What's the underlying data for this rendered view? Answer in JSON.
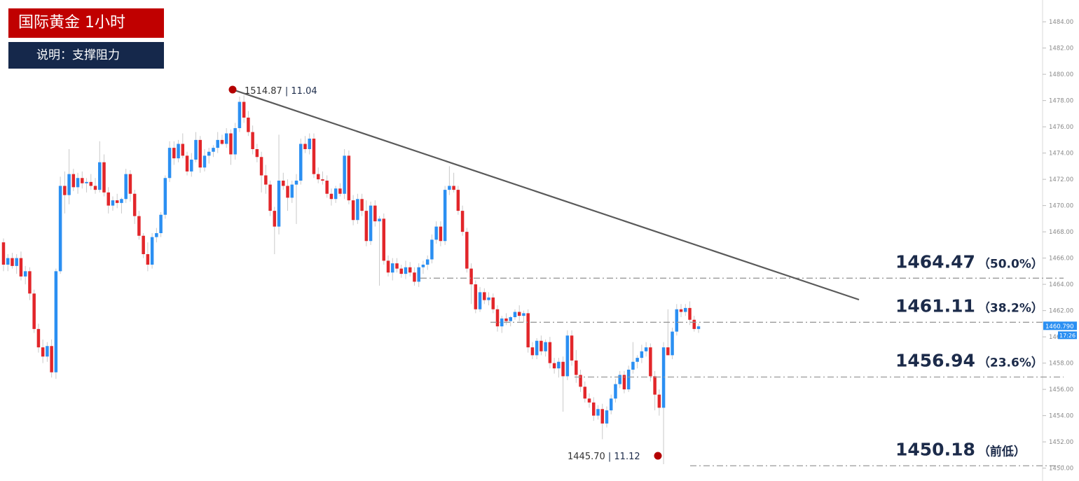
{
  "header": {
    "title": "国际黄金 1小时",
    "subtitle": "说明：支撑阻力"
  },
  "chart_data": {
    "type": "candlestick",
    "title": "国际黄金 1小时",
    "subtitle": "说明：支撑阻力",
    "ylim": [
      1449.5,
      1485.5
    ],
    "y_ticks": [
      "1484.00",
      "1482.00",
      "1480.00",
      "1478.00",
      "1476.00",
      "1474.00",
      "1472.00",
      "1470.00",
      "1468.00",
      "1466.00",
      "1464.00",
      "1462.00",
      "1460.00",
      "1458.00",
      "1456.00",
      "1454.00",
      "1452.00",
      "1450.00"
    ],
    "current_price": "1460.790",
    "current_price_sub": "17:26",
    "levels": [
      {
        "price": "1464.47",
        "pct": "（50.0%）",
        "y": 1464.47
      },
      {
        "price": "1461.11",
        "pct": "（38.2%）",
        "y": 1461.11
      },
      {
        "price": "1456.94",
        "pct": "（23.6%）",
        "y": 1456.94
      },
      {
        "price": "1450.18",
        "pct": "（前低）",
        "y": 1450.18
      }
    ],
    "swing_high": {
      "price": "1514.87",
      "value": "11.04"
    },
    "swing_low": {
      "price": "1445.70",
      "value": "11.12"
    },
    "candles": [
      [
        1467.2,
        1467.5,
        1465.0,
        1465.5
      ],
      [
        1465.5,
        1466.3,
        1465.0,
        1466.0
      ],
      [
        1466.0,
        1466.4,
        1465.2,
        1465.4
      ],
      [
        1465.4,
        1466.3,
        1464.8,
        1466.0
      ],
      [
        1466.0,
        1466.5,
        1464.3,
        1464.6
      ],
      [
        1464.6,
        1465.4,
        1464.0,
        1465.0
      ],
      [
        1465.0,
        1465.3,
        1462.8,
        1463.3
      ],
      [
        1463.3,
        1463.6,
        1460.3,
        1460.6
      ],
      [
        1460.6,
        1461.0,
        1458.8,
        1459.2
      ],
      [
        1459.2,
        1459.8,
        1458.0,
        1458.5
      ],
      [
        1458.5,
        1459.6,
        1458.1,
        1459.3
      ],
      [
        1459.3,
        1459.8,
        1456.9,
        1457.3
      ],
      [
        1457.3,
        1465.2,
        1456.8,
        1465.0
      ],
      [
        1465.0,
        1472.2,
        1464.8,
        1471.5
      ],
      [
        1471.5,
        1472.6,
        1469.4,
        1470.8
      ],
      [
        1470.8,
        1474.3,
        1470.1,
        1472.4
      ],
      [
        1472.4,
        1472.8,
        1471.1,
        1471.4
      ],
      [
        1471.4,
        1472.5,
        1470.9,
        1472.1
      ],
      [
        1472.1,
        1472.6,
        1471.3,
        1471.7
      ],
      [
        1471.7,
        1472.1,
        1471.0,
        1471.8
      ],
      [
        1471.8,
        1472.4,
        1471.2,
        1471.5
      ],
      [
        1471.5,
        1472.1,
        1470.9,
        1471.2
      ],
      [
        1471.2,
        1474.9,
        1471.0,
        1473.3
      ],
      [
        1473.3,
        1473.9,
        1470.7,
        1471.0
      ],
      [
        1471.0,
        1471.4,
        1469.4,
        1470.0
      ],
      [
        1470.0,
        1470.7,
        1469.6,
        1470.4
      ],
      [
        1470.4,
        1470.9,
        1469.8,
        1470.2
      ],
      [
        1470.2,
        1470.6,
        1469.4,
        1470.5
      ],
      [
        1470.5,
        1472.8,
        1470.2,
        1472.4
      ],
      [
        1472.4,
        1472.7,
        1470.3,
        1470.9
      ],
      [
        1470.9,
        1471.2,
        1468.6,
        1469.2
      ],
      [
        1469.2,
        1469.6,
        1467.4,
        1467.7
      ],
      [
        1467.7,
        1467.9,
        1466.0,
        1466.3
      ],
      [
        1466.3,
        1467.2,
        1465.0,
        1465.5
      ],
      [
        1465.5,
        1467.9,
        1465.2,
        1467.6
      ],
      [
        1467.6,
        1468.3,
        1467.2,
        1467.9
      ],
      [
        1467.9,
        1469.5,
        1467.6,
        1469.3
      ],
      [
        1469.3,
        1472.3,
        1469.0,
        1472.1
      ],
      [
        1472.1,
        1474.9,
        1471.8,
        1474.4
      ],
      [
        1474.4,
        1474.9,
        1473.1,
        1473.6
      ],
      [
        1473.6,
        1475.0,
        1473.3,
        1474.7
      ],
      [
        1474.7,
        1475.5,
        1473.6,
        1473.8
      ],
      [
        1473.8,
        1474.1,
        1472.3,
        1472.6
      ],
      [
        1472.6,
        1474.0,
        1472.2,
        1473.5
      ],
      [
        1473.5,
        1475.6,
        1473.3,
        1475.0
      ],
      [
        1475.0,
        1475.3,
        1472.5,
        1472.9
      ],
      [
        1472.9,
        1474.3,
        1472.6,
        1473.8
      ],
      [
        1473.8,
        1474.4,
        1473.2,
        1474.1
      ],
      [
        1474.1,
        1474.6,
        1473.7,
        1474.4
      ],
      [
        1474.4,
        1475.6,
        1474.0,
        1475.0
      ],
      [
        1475.0,
        1475.4,
        1474.6,
        1474.7
      ],
      [
        1474.7,
        1475.9,
        1474.4,
        1475.5
      ],
      [
        1475.5,
        1475.8,
        1473.1,
        1473.9
      ],
      [
        1473.9,
        1476.3,
        1473.5,
        1475.9
      ],
      [
        1475.9,
        1478.3,
        1475.6,
        1477.9
      ],
      [
        1477.9,
        1478.4,
        1476.3,
        1476.7
      ],
      [
        1476.7,
        1477.2,
        1475.3,
        1475.6
      ],
      [
        1475.6,
        1476.1,
        1473.9,
        1474.3
      ],
      [
        1474.3,
        1474.7,
        1473.3,
        1473.7
      ],
      [
        1473.7,
        1474.1,
        1471.0,
        1472.3
      ],
      [
        1472.3,
        1473.1,
        1470.9,
        1471.6
      ],
      [
        1471.6,
        1471.9,
        1469.2,
        1469.6
      ],
      [
        1469.6,
        1469.9,
        1466.3,
        1468.4
      ],
      [
        1468.4,
        1475.4,
        1467.8,
        1471.9
      ],
      [
        1471.9,
        1472.5,
        1471.2,
        1471.5
      ],
      [
        1471.5,
        1472.0,
        1469.6,
        1470.6
      ],
      [
        1470.6,
        1471.9,
        1470.2,
        1471.6
      ],
      [
        1471.6,
        1472.4,
        1468.6,
        1471.9
      ],
      [
        1471.9,
        1475.1,
        1471.6,
        1474.7
      ],
      [
        1474.7,
        1475.3,
        1474.0,
        1474.3
      ],
      [
        1474.3,
        1475.5,
        1473.9,
        1475.1
      ],
      [
        1475.1,
        1475.5,
        1472.1,
        1472.4
      ],
      [
        1472.4,
        1472.9,
        1471.7,
        1472.0
      ],
      [
        1472.0,
        1472.6,
        1471.6,
        1471.9
      ],
      [
        1471.9,
        1472.3,
        1470.6,
        1470.9
      ],
      [
        1470.9,
        1471.3,
        1470.0,
        1470.5
      ],
      [
        1470.5,
        1471.5,
        1470.2,
        1471.3
      ],
      [
        1471.3,
        1471.7,
        1470.7,
        1470.9
      ],
      [
        1470.9,
        1474.3,
        1470.5,
        1473.8
      ],
      [
        1473.8,
        1474.2,
        1470.1,
        1470.4
      ],
      [
        1470.4,
        1470.8,
        1468.5,
        1468.9
      ],
      [
        1468.9,
        1470.9,
        1468.6,
        1470.5
      ],
      [
        1470.5,
        1470.9,
        1469.2,
        1469.6
      ],
      [
        1469.6,
        1470.4,
        1466.9,
        1467.3
      ],
      [
        1467.3,
        1470.3,
        1467.0,
        1470.0
      ],
      [
        1470.0,
        1470.4,
        1468.4,
        1468.8
      ],
      [
        1468.8,
        1469.2,
        1463.9,
        1469.0
      ],
      [
        1469.0,
        1469.4,
        1465.5,
        1465.8
      ],
      [
        1465.8,
        1466.2,
        1464.6,
        1464.9
      ],
      [
        1464.9,
        1466.0,
        1464.3,
        1465.6
      ],
      [
        1465.6,
        1466.0,
        1464.9,
        1465.2
      ],
      [
        1465.2,
        1465.5,
        1464.5,
        1464.8
      ],
      [
        1464.8,
        1465.8,
        1464.4,
        1465.3
      ],
      [
        1465.3,
        1465.7,
        1464.6,
        1464.9
      ],
      [
        1464.9,
        1465.3,
        1463.9,
        1464.2
      ],
      [
        1464.2,
        1465.6,
        1463.8,
        1465.3
      ],
      [
        1465.3,
        1465.8,
        1464.8,
        1465.5
      ],
      [
        1465.5,
        1466.2,
        1465.1,
        1465.9
      ],
      [
        1465.9,
        1467.8,
        1465.6,
        1467.4
      ],
      [
        1467.4,
        1468.8,
        1467.1,
        1468.4
      ],
      [
        1468.4,
        1468.8,
        1466.9,
        1467.3
      ],
      [
        1467.3,
        1471.5,
        1467.0,
        1471.2
      ],
      [
        1471.2,
        1473.0,
        1470.8,
        1471.5
      ],
      [
        1471.5,
        1472.5,
        1471.0,
        1471.2
      ],
      [
        1471.2,
        1471.5,
        1469.3,
        1469.6
      ],
      [
        1469.6,
        1470.0,
        1467.7,
        1468.0
      ],
      [
        1468.0,
        1468.3,
        1464.9,
        1465.2
      ],
      [
        1465.2,
        1465.6,
        1462.5,
        1464.0
      ],
      [
        1464.0,
        1464.3,
        1461.8,
        1462.1
      ],
      [
        1462.1,
        1463.8,
        1461.9,
        1463.4
      ],
      [
        1463.4,
        1463.7,
        1462.5,
        1462.8
      ],
      [
        1462.8,
        1463.4,
        1462.4,
        1463.0
      ],
      [
        1463.0,
        1463.3,
        1461.8,
        1462.1
      ],
      [
        1462.1,
        1462.4,
        1460.4,
        1460.8
      ],
      [
        1460.8,
        1461.6,
        1460.3,
        1461.4
      ],
      [
        1461.4,
        1461.8,
        1460.9,
        1461.2
      ],
      [
        1461.2,
        1461.6,
        1460.8,
        1461.5
      ],
      [
        1461.5,
        1462.1,
        1461.3,
        1461.9
      ],
      [
        1461.9,
        1462.4,
        1461.2,
        1461.6
      ],
      [
        1461.6,
        1462.0,
        1461.1,
        1461.8
      ],
      [
        1461.8,
        1462.1,
        1458.8,
        1459.2
      ],
      [
        1459.2,
        1459.6,
        1458.3,
        1458.6
      ],
      [
        1458.6,
        1459.9,
        1458.3,
        1459.7
      ],
      [
        1459.7,
        1460.1,
        1458.6,
        1458.9
      ],
      [
        1458.9,
        1459.8,
        1458.5,
        1459.6
      ],
      [
        1459.6,
        1460.0,
        1457.6,
        1458.0
      ],
      [
        1458.0,
        1458.4,
        1457.2,
        1457.6
      ],
      [
        1457.6,
        1458.4,
        1456.9,
        1458.1
      ],
      [
        1458.1,
        1458.5,
        1454.3,
        1457.0
      ],
      [
        1457.0,
        1460.5,
        1456.7,
        1460.1
      ],
      [
        1460.1,
        1460.5,
        1457.8,
        1458.2
      ],
      [
        1458.2,
        1459.0,
        1456.5,
        1457.1
      ],
      [
        1457.1,
        1457.5,
        1455.8,
        1456.2
      ],
      [
        1456.2,
        1456.6,
        1455.0,
        1455.3
      ],
      [
        1455.3,
        1455.7,
        1454.6,
        1455.0
      ],
      [
        1455.0,
        1455.4,
        1453.6,
        1454.0
      ],
      [
        1454.0,
        1454.8,
        1453.7,
        1454.5
      ],
      [
        1454.5,
        1454.9,
        1452.2,
        1453.4
      ],
      [
        1453.4,
        1454.7,
        1453.1,
        1454.4
      ],
      [
        1454.4,
        1455.6,
        1454.1,
        1455.3
      ],
      [
        1455.3,
        1456.8,
        1455.0,
        1456.4
      ],
      [
        1456.4,
        1457.4,
        1456.1,
        1457.1
      ],
      [
        1457.1,
        1457.4,
        1455.7,
        1456.0
      ],
      [
        1456.0,
        1457.8,
        1455.8,
        1457.5
      ],
      [
        1457.5,
        1459.6,
        1457.2,
        1458.1
      ],
      [
        1458.1,
        1458.6,
        1457.6,
        1458.4
      ],
      [
        1458.4,
        1459.4,
        1458.0,
        1458.9
      ],
      [
        1458.9,
        1459.6,
        1458.5,
        1459.2
      ],
      [
        1459.2,
        1459.5,
        1456.6,
        1457.0
      ],
      [
        1457.0,
        1457.4,
        1454.4,
        1455.6
      ],
      [
        1455.6,
        1456.0,
        1454.0,
        1454.6
      ],
      [
        1454.6,
        1459.6,
        1450.3,
        1459.2
      ],
      [
        1459.2,
        1462.1,
        1458.7,
        1458.6
      ],
      [
        1458.6,
        1460.7,
        1458.3,
        1460.4
      ],
      [
        1460.4,
        1462.5,
        1460.1,
        1462.1
      ],
      [
        1462.1,
        1462.5,
        1461.5,
        1461.9
      ],
      [
        1461.9,
        1462.5,
        1461.6,
        1462.2
      ],
      [
        1462.2,
        1462.7,
        1460.9,
        1461.3
      ],
      [
        1461.3,
        1461.6,
        1460.4,
        1460.6
      ],
      [
        1460.6,
        1461.0,
        1460.3,
        1460.8
      ]
    ]
  }
}
